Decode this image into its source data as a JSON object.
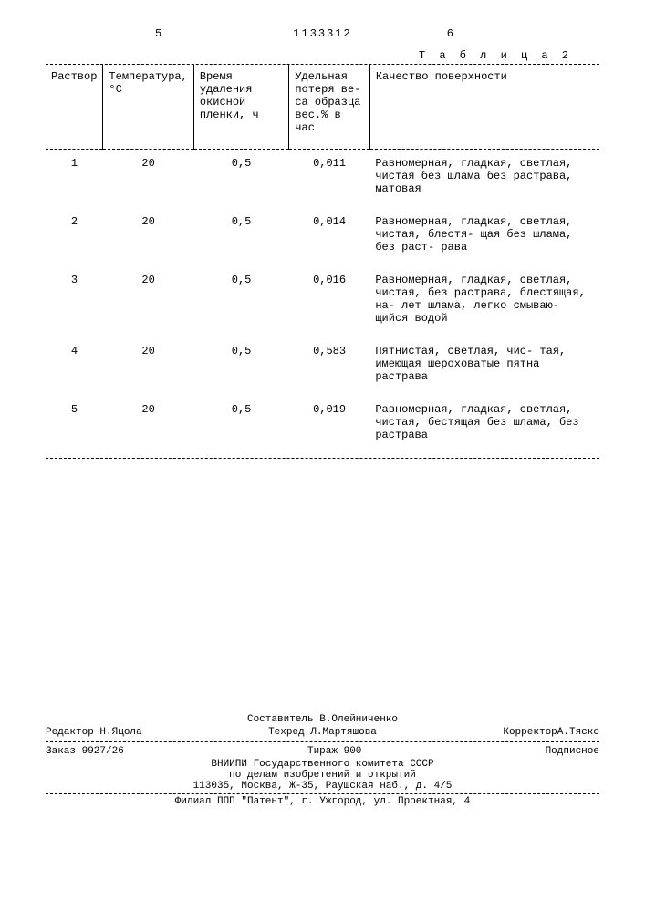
{
  "header": {
    "left_num": "5",
    "doc_num": "1133312",
    "right_num": "6",
    "table_label": "Т а б л и ц а  2"
  },
  "table": {
    "columns": {
      "rastvor": "Раствор",
      "temp": "Температура, °С",
      "vremya": "Время удаления окисной пленки, ч",
      "udel": "Удельная потеря ве- са образца вес.% в час",
      "kach": "Качество поверхности"
    },
    "rows": [
      {
        "n": "1",
        "t": "20",
        "v": "0,5",
        "u": "0,011",
        "k": "Равномерная, гладкая, светлая, чистая без шлама без растрава, матовая"
      },
      {
        "n": "2",
        "t": "20",
        "v": "0,5",
        "u": "0,014",
        "k": "Равномерная, гладкая, светлая, чистая, блестя- щая без шлама, без раст- рава"
      },
      {
        "n": "3",
        "t": "20",
        "v": "0,5",
        "u": "0,016",
        "k": "Равномерная, гладкая, светлая, чистая, без растрава, блестящая, на- лет шлама, легко смываю- щийся водой"
      },
      {
        "n": "4",
        "t": "20",
        "v": "0,5",
        "u": "0,583",
        "k": "Пятнистая, светлая, чис- тая, имеющая шероховатые пятна растрава"
      },
      {
        "n": "5",
        "t": "20",
        "v": "0,5",
        "u": "0,019",
        "k": "Равномерная, гладкая, светлая, чистая, бестящая без шлама, без растрава"
      }
    ]
  },
  "credits": {
    "compiler": "Составитель В.Олейниченко",
    "editor": "Редактор Н.Яцола",
    "techred": "Техред Л.Мартяшова",
    "corrector": "КорректорА.Тяско",
    "order": "Заказ 9927/26",
    "tirazh": "Тираж 900",
    "podpis": "Подписное",
    "org1": "ВНИИПИ Государственного комитета СССР",
    "org2": "по делам изобретений и открытий",
    "addr1": "113035, Москва, Ж-35, Раушская наб., д. 4/5",
    "addr2": "Филиал ППП \"Патент\", г. Ужгород, ул. Проектная, 4"
  }
}
